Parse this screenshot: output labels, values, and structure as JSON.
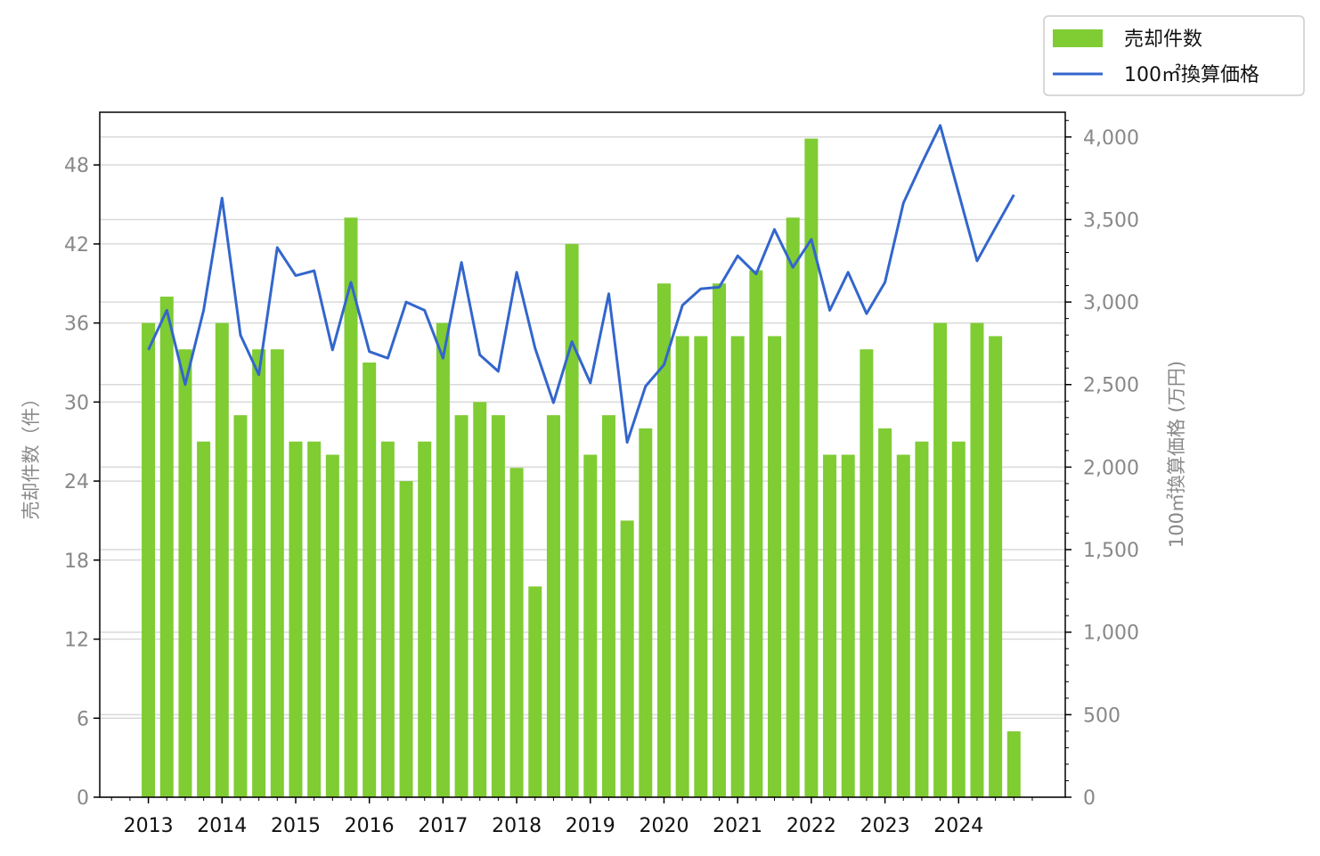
{
  "chart_data": {
    "type": "bar",
    "title": "",
    "x_tick_labels": [
      "2013",
      "2014",
      "2015",
      "2016",
      "2017",
      "2018",
      "2019",
      "2020",
      "2021",
      "2022",
      "2023",
      "2024"
    ],
    "x": [
      2013.0,
      2013.25,
      2013.5,
      2013.75,
      2014.0,
      2014.25,
      2014.5,
      2014.75,
      2015.0,
      2015.25,
      2015.5,
      2015.75,
      2016.0,
      2016.25,
      2016.5,
      2016.75,
      2017.0,
      2017.25,
      2017.5,
      2017.75,
      2018.0,
      2018.25,
      2018.5,
      2018.75,
      2019.0,
      2019.25,
      2019.5,
      2019.75,
      2020.0,
      2020.25,
      2020.5,
      2020.75,
      2021.0,
      2021.25,
      2021.5,
      2021.75,
      2022.0,
      2022.25,
      2022.5,
      2022.75,
      2023.0,
      2023.25,
      2023.5,
      2023.75,
      2024.0,
      2024.25,
      2024.5,
      2024.75
    ],
    "series": [
      {
        "name": "売却件数",
        "type": "bar",
        "axis": "left",
        "color": "#7fcc33",
        "values": [
          36,
          38,
          34,
          27,
          36,
          29,
          34,
          34,
          27,
          27,
          26,
          44,
          33,
          27,
          24,
          27,
          36,
          29,
          30,
          29,
          25,
          16,
          29,
          42,
          26,
          29,
          21,
          28,
          39,
          35,
          35,
          39,
          35,
          40,
          35,
          44,
          50,
          26,
          26,
          34,
          28,
          26,
          27,
          36,
          27,
          36,
          35,
          5
        ]
      },
      {
        "name": "100㎡換算価格",
        "type": "line",
        "axis": "right",
        "color": "#3366cc",
        "values": [
          2710,
          2950,
          2500,
          2950,
          3630,
          2800,
          2560,
          3330,
          3160,
          3190,
          2710,
          3120,
          2700,
          2660,
          3000,
          2950,
          2660,
          3240,
          2680,
          2580,
          3180,
          2720,
          2390,
          2760,
          2510,
          3050,
          2150,
          2490,
          2620,
          2980,
          3080,
          3090,
          3280,
          3170,
          3440,
          3210,
          3380,
          2950,
          3180,
          2930,
          3120,
          3600,
          3840,
          4070,
          3660,
          3250,
          3450,
          3650
        ]
      }
    ],
    "ylabel_left": "売却件数（件）",
    "ylabel_right": "100㎡換算価格 (万円)",
    "ylim_left": [
      0,
      52
    ],
    "ylim_right": [
      0,
      4150
    ],
    "yticks_left": [
      "0",
      "6",
      "12",
      "18",
      "24",
      "30",
      "36",
      "42",
      "48"
    ],
    "yticks_right": [
      "0",
      "500",
      "1,000",
      "1,500",
      "2,000",
      "2,500",
      "3,000",
      "3,500",
      "4,000"
    ],
    "grid": "horizontal",
    "legend_position": "top-right, outside"
  }
}
